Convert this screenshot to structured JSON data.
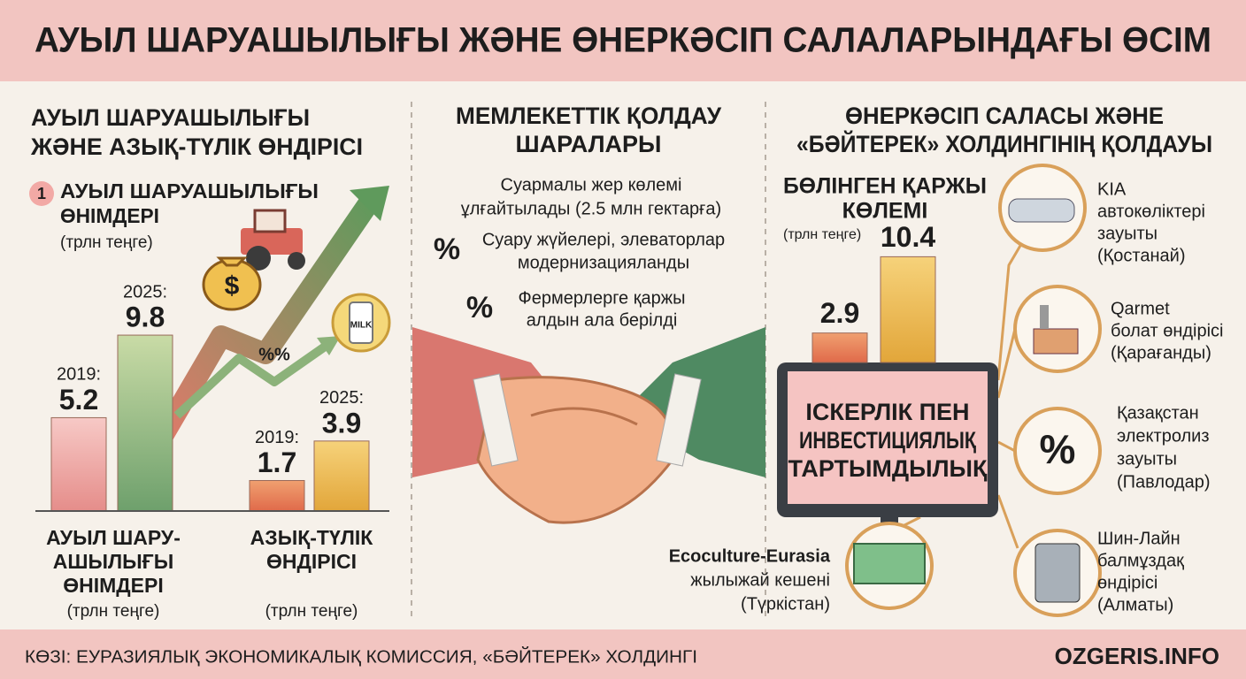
{
  "header": {
    "title": "АУЫЛ ШАРУАШЫЛЫҒЫ ЖӘНЕ ӨНЕРКӘСІП САЛАЛАРЫНДАҒЫ ӨСІМ"
  },
  "left": {
    "title": [
      "АУЫЛ ШАРУАШЫЛЫҒЫ",
      "ЖӘНЕ АЗЫҚ-ТҮЛІК ӨНДІРІСІ"
    ],
    "badge": "1",
    "subtitle": [
      "АУЫЛ ШАРУАШЫЛЫҒЫ",
      "ӨНІМДЕРІ"
    ],
    "unit": "(трлн теңге)",
    "icons": {
      "money": "$",
      "milk": "MILK",
      "percent": "%%"
    },
    "groups": [
      {
        "labels": [
          "АУЫЛ ШАРУ-",
          "АШЫЛЫҒЫ",
          "ӨНІМДЕРІ"
        ],
        "unit": "(трлн теңге)",
        "bars": [
          {
            "year": "2019:",
            "value": 5.2
          },
          {
            "year": "2025:",
            "value": 9.8
          }
        ]
      },
      {
        "labels": [
          "АЗЫҚ-ТҮЛІК",
          "ӨНДІРІСІ"
        ],
        "unit": "(трлн теңге)",
        "bars": [
          {
            "year": "2019:",
            "value": 1.7
          },
          {
            "year": "2025:",
            "value": 3.9
          }
        ]
      }
    ]
  },
  "middle": {
    "title": [
      "МЕМЛЕКЕТТІК ҚОЛДАУ",
      "ШАРАЛАРЫ"
    ],
    "items": [
      {
        "lines": [
          "Суармалы жер көлемі",
          "ұлғайтылады (2.5 млн гектарға)"
        ]
      },
      {
        "icon": "%",
        "lines": [
          "Суару жүйелері, элеваторлар",
          "модернизацияланды"
        ]
      },
      {
        "icon": "%",
        "lines": [
          "Фермерлерге қаржы",
          "алдын ала берілді"
        ]
      }
    ]
  },
  "right": {
    "title": [
      "ӨНЕРКӘСІП САЛАСЫ ЖӘНЕ",
      "«БӘЙТЕРЕК» ХОЛДИНГІНІҢ ҚОЛДАУЫ"
    ],
    "funding": {
      "title": [
        "БӨЛІНГЕН ҚАРЖЫ",
        "КӨЛЕМІ"
      ],
      "unit": "(трлн теңге)",
      "values": [
        2.9,
        10.4
      ]
    },
    "monitor": [
      "ІСКЕРЛІК ПЕН",
      "ИНВЕСТИЦИЯЛЫҚ",
      "ТАРТЫМДЫЛЫҚ"
    ],
    "percent_icon": "%",
    "projects": [
      {
        "lines": [
          "KIA",
          "автокөліктері",
          "зауыты",
          "(Қостанай)"
        ]
      },
      {
        "lines": [
          "Qarmet",
          "болат өндірісі",
          "(Қарағанды)"
        ]
      },
      {
        "lines": [
          "Қазақстан",
          "электролиз",
          "зауыты",
          "(Павлодар)"
        ]
      },
      {
        "lines": [
          "Шин-Лайн",
          "балмұздақ",
          "өндірісі",
          "(Алматы)"
        ]
      },
      {
        "lines": [
          "Ecoculture-Eurasia",
          "жылыжай кешені",
          "(Түркістан)"
        ]
      }
    ]
  },
  "footer": {
    "source": "КӨЗІ: ЕУРАЗИЯЛЫҚ ЭКОНОМИКАЛЫҚ КОМИССИЯ, «БӘЙТЕРЕК» ХОЛДИНГІ",
    "brand": "OZGERIS.INFO"
  }
}
